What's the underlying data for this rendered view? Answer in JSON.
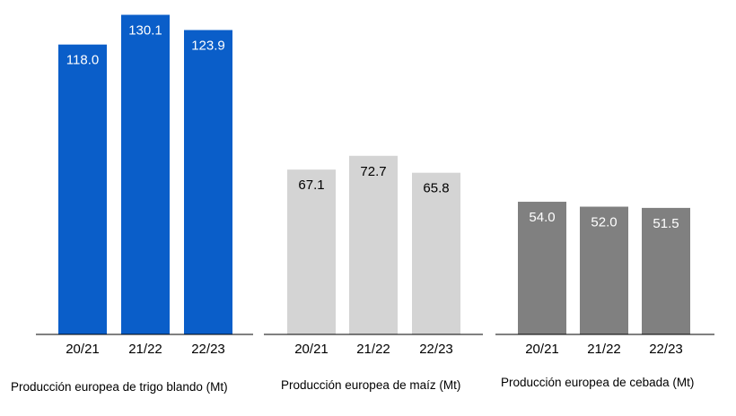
{
  "chart_data": [
    {
      "type": "bar",
      "title": "Producción europea de trigo blando (Mt)",
      "categories": [
        "20/21",
        "21/22",
        "22/23"
      ],
      "values": [
        118.0,
        130.1,
        123.9
      ],
      "labels": [
        "118.0",
        "130.1",
        "123.9"
      ],
      "color": "#0a5ec9",
      "label_color": "#ffffff",
      "ylim": [
        0,
        135
      ]
    },
    {
      "type": "bar",
      "title": "Producción europea de maíz (Mt)",
      "categories": [
        "20/21",
        "21/22",
        "22/23"
      ],
      "values": [
        67.1,
        72.7,
        65.8
      ],
      "labels": [
        "67.1",
        "72.7",
        "65.8"
      ],
      "color": "#d4d4d4",
      "label_color": "#000000",
      "ylim": [
        0,
        135
      ]
    },
    {
      "type": "bar",
      "title": "Producción europea de cebada (Mt)",
      "categories": [
        "20/21",
        "21/22",
        "22/23"
      ],
      "values": [
        54.0,
        52.0,
        51.5
      ],
      "labels": [
        "54.0",
        "52.0",
        "51.5"
      ],
      "color": "#808080",
      "label_color": "#ffffff",
      "ylim": [
        0,
        135
      ]
    }
  ]
}
